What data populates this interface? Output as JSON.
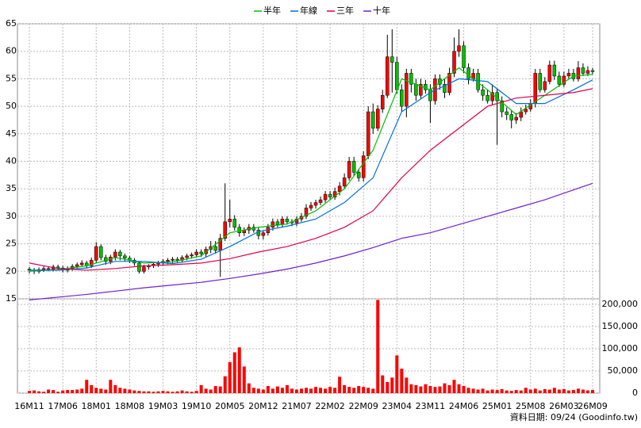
{
  "chart_data": {
    "type": "candlestick",
    "legend": "top",
    "grid": true,
    "up_color": "#ff0000",
    "down_color": "#00c000",
    "wick_color": "#000000",
    "xlim": [
      -2.5,
      119.5
    ],
    "ylim": [
      15,
      65
    ],
    "yticks": [
      15,
      20,
      25,
      30,
      35,
      40,
      45,
      50,
      55,
      60,
      65
    ],
    "y2lim": [
      0,
      212500
    ],
    "y2ticks": [
      0,
      {
        "value": 50000,
        "label": "50,000"
      },
      {
        "value": 100000,
        "label": "100,000"
      },
      {
        "value": 150000,
        "label": "150,000"
      },
      {
        "value": 200000,
        "label": "200,000"
      }
    ],
    "xticks": [
      {
        "value": 0,
        "label": "16M11"
      },
      {
        "value": 7,
        "label": "17M06"
      },
      {
        "value": 14,
        "label": "18M01"
      },
      {
        "value": 21,
        "label": "18M08"
      },
      {
        "value": 28,
        "label": "19M03"
      },
      {
        "value": 35,
        "label": "19M10"
      },
      {
        "value": 42,
        "label": "20M05"
      },
      {
        "value": 49,
        "label": "20M12"
      },
      {
        "value": 56,
        "label": "21M07"
      },
      {
        "value": 63,
        "label": "22M02"
      },
      {
        "value": 70,
        "label": "22M09"
      },
      {
        "value": 77,
        "label": "23M04"
      },
      {
        "value": 84,
        "label": "23M11"
      },
      {
        "value": 91,
        "label": "24M06"
      },
      {
        "value": 98,
        "label": "25M01"
      },
      {
        "value": 105,
        "label": "25M08"
      },
      {
        "value": 112,
        "label": "26M03"
      },
      {
        "value": 118,
        "label": "26M09"
      }
    ],
    "open": [
      20.4,
      20.2,
      20.0,
      20.3,
      20.5,
      20.4,
      20.8,
      20.6,
      20.2,
      20.5,
      20.9,
      21.2,
      21.5,
      21.0,
      22.0,
      24.5,
      22.5,
      21.8,
      22.6,
      23.5,
      22.8,
      22.4,
      22.0,
      21.5,
      20.0,
      20.8,
      21.0,
      21.3,
      21.5,
      21.8,
      22.0,
      22.2,
      22.0,
      22.5,
      22.8,
      23.0,
      23.5,
      23.2,
      24.0,
      24.5,
      23.8,
      26.0,
      29.0,
      29.5,
      28.0,
      27.0,
      27.5,
      28.0,
      27.5,
      26.5,
      27.0,
      28.0,
      29.0,
      28.5,
      29.5,
      29.0,
      28.8,
      29.5,
      30.0,
      31.5,
      32.0,
      32.5,
      33.0,
      34.0,
      33.5,
      34.5,
      35.5,
      37.0,
      40.0,
      38.0,
      37.0,
      41.0,
      49.0,
      46.0,
      49.5,
      52.0,
      59.0,
      58.0,
      53.0,
      50.0,
      56.0,
      54.0,
      52.0,
      54.0,
      53.0,
      51.0,
      55.0,
      54.0,
      52.5,
      56.0,
      60.0,
      61.0,
      57.0,
      55.0,
      56.0,
      53.0,
      52.0,
      51.0,
      52.5,
      51.0,
      49.0,
      48.5,
      47.5,
      48.0,
      49.0,
      49.5,
      50.5,
      56.0,
      53.0,
      54.5,
      57.5,
      55.5,
      54.0,
      55.5,
      56.0,
      55.0,
      57.0,
      56.0,
      56.5
    ],
    "high": [
      20.8,
      20.6,
      20.7,
      20.9,
      20.9,
      21.2,
      21.2,
      21.0,
      20.9,
      21.3,
      21.6,
      22.0,
      21.9,
      22.5,
      25.3,
      24.9,
      23.0,
      23.0,
      24.0,
      23.9,
      23.2,
      22.8,
      22.4,
      21.9,
      21.2,
      21.3,
      21.7,
      21.9,
      22.2,
      22.4,
      22.6,
      22.6,
      22.9,
      23.2,
      23.4,
      24.0,
      24.0,
      24.5,
      25.5,
      25.5,
      26.8,
      36.0,
      33.0,
      30.2,
      28.6,
      28.0,
      28.6,
      28.6,
      28.0,
      27.5,
      28.6,
      29.6,
      29.5,
      30.0,
      30.0,
      29.5,
      30.0,
      30.6,
      32.2,
      32.6,
      33.0,
      33.6,
      34.6,
      34.6,
      35.2,
      36.2,
      37.8,
      40.8,
      40.8,
      38.6,
      41.8,
      50.0,
      50.5,
      50.2,
      53.0,
      63.0,
      64.0,
      59.0,
      54.0,
      56.8,
      56.8,
      55.0,
      55.0,
      54.8,
      54.0,
      55.8,
      55.8,
      55.0,
      57.0,
      62.5,
      64.0,
      61.8,
      57.8,
      56.8,
      56.8,
      54.0,
      53.0,
      54.0,
      53.2,
      51.8,
      49.8,
      49.3,
      48.8,
      49.8,
      50.3,
      51.3,
      56.8,
      56.8,
      55.3,
      58.3,
      58.3,
      56.3,
      56.3,
      56.8,
      56.8,
      58.2,
      57.8,
      57.3,
      57.0
    ],
    "low": [
      19.6,
      19.5,
      19.6,
      19.9,
      20.0,
      20.0,
      20.2,
      19.8,
      19.8,
      20.1,
      20.5,
      20.8,
      20.5,
      20.6,
      21.5,
      22.0,
      21.2,
      21.3,
      22.0,
      22.0,
      21.8,
      21.5,
      21.0,
      19.6,
      19.6,
      20.3,
      20.6,
      20.8,
      21.0,
      21.3,
      21.5,
      21.5,
      21.6,
      22.0,
      22.3,
      22.5,
      22.6,
      22.6,
      23.3,
      23.2,
      19.0,
      25.5,
      28.0,
      27.4,
      26.3,
      26.4,
      26.8,
      27.0,
      25.8,
      25.8,
      26.5,
      27.4,
      28.0,
      28.0,
      28.5,
      28.2,
      28.2,
      29.0,
      29.5,
      31.0,
      31.4,
      32.0,
      32.5,
      33.0,
      33.0,
      33.8,
      35.0,
      36.5,
      37.4,
      36.3,
      36.3,
      40.4,
      45.0,
      45.5,
      48.8,
      51.5,
      52.5,
      52.3,
      49.0,
      48.0,
      52.5,
      51.0,
      51.3,
      52.3,
      47.0,
      50.3,
      53.0,
      51.5,
      52.0,
      55.3,
      59.0,
      56.0,
      54.0,
      54.5,
      52.5,
      51.0,
      50.5,
      50.3,
      43.0,
      48.0,
      47.5,
      46.0,
      46.8,
      47.3,
      48.5,
      49.0,
      49.8,
      52.5,
      52.5,
      54.0,
      54.8,
      53.5,
      53.5,
      55.0,
      54.5,
      54.5,
      55.5,
      55.5,
      55.8
    ],
    "close": [
      20.2,
      20.0,
      20.3,
      20.5,
      20.4,
      20.8,
      20.6,
      20.2,
      20.5,
      20.9,
      21.2,
      21.5,
      21.0,
      22.0,
      24.5,
      22.5,
      21.8,
      22.6,
      23.5,
      22.8,
      22.4,
      22.0,
      21.5,
      20.0,
      20.8,
      21.0,
      21.3,
      21.5,
      21.8,
      22.0,
      22.2,
      22.0,
      22.5,
      22.8,
      23.0,
      23.5,
      23.2,
      24.0,
      24.5,
      23.8,
      26.0,
      29.0,
      29.5,
      28.0,
      27.0,
      27.5,
      28.0,
      27.5,
      26.5,
      27.0,
      28.0,
      29.0,
      28.5,
      29.5,
      29.0,
      28.8,
      29.5,
      30.0,
      31.5,
      32.0,
      32.5,
      33.0,
      34.0,
      33.5,
      34.5,
      35.5,
      37.0,
      40.0,
      38.0,
      37.0,
      41.0,
      49.0,
      46.0,
      49.5,
      52.0,
      59.0,
      58.0,
      53.0,
      50.0,
      56.0,
      54.0,
      52.0,
      54.0,
      53.0,
      51.0,
      55.0,
      54.0,
      52.5,
      56.0,
      60.0,
      61.0,
      57.0,
      55.0,
      56.0,
      53.0,
      52.0,
      51.0,
      52.5,
      51.0,
      49.0,
      48.5,
      47.5,
      48.0,
      49.0,
      49.5,
      50.5,
      56.0,
      53.0,
      54.5,
      57.5,
      55.5,
      54.0,
      55.5,
      56.0,
      55.0,
      57.0,
      56.0,
      56.5,
      56.3
    ],
    "volume": {
      "color": "#ff0000",
      "values": [
        5000,
        6000,
        4000,
        3000,
        8000,
        7000,
        3000,
        6000,
        7000,
        7000,
        8000,
        10000,
        30000,
        18000,
        12000,
        10000,
        8000,
        30000,
        18000,
        12000,
        10000,
        8000,
        6000,
        5000,
        4000,
        4000,
        3000,
        4000,
        5000,
        4000,
        3000,
        4000,
        6000,
        4000,
        3000,
        5000,
        18000,
        10000,
        8000,
        16000,
        15000,
        38000,
        70000,
        92000,
        103000,
        60000,
        22000,
        12000,
        10000,
        8000,
        16000,
        10000,
        15000,
        12000,
        18000,
        10000,
        8000,
        10000,
        12000,
        10000,
        14000,
        12000,
        10000,
        14000,
        12000,
        37000,
        18000,
        14000,
        12000,
        16000,
        14000,
        12000,
        10000,
        210000,
        40000,
        25000,
        35000,
        85000,
        55000,
        35000,
        20000,
        18000,
        15000,
        20000,
        16000,
        14000,
        15000,
        22000,
        18000,
        30000,
        20000,
        16000,
        12000,
        10000,
        8000,
        10000,
        6000,
        8000,
        7000,
        9000,
        6000,
        5000,
        7000,
        6000,
        12000,
        8000,
        10000,
        6000,
        9000,
        8000,
        12000,
        8000,
        9000,
        6000,
        7000,
        10000,
        8000,
        6000,
        7000
      ]
    },
    "series": [
      {
        "name": "半年",
        "color": "#00c000",
        "x": [
          0,
          6,
          12,
          18,
          24,
          30,
          36,
          42,
          48,
          54,
          60,
          66,
          72,
          78,
          84,
          90,
          96,
          102,
          108,
          114,
          118
        ],
        "values": [
          20,
          20.3,
          21,
          22.5,
          21.5,
          21.7,
          22.8,
          27,
          28,
          28.6,
          31,
          35,
          42,
          55,
          53,
          57,
          53,
          48.5,
          52,
          55.5,
          55.8
        ]
      },
      {
        "name": "年線",
        "color": "#0070e0",
        "x": [
          0,
          6,
          12,
          18,
          24,
          30,
          36,
          42,
          48,
          54,
          60,
          66,
          72,
          78,
          84,
          90,
          96,
          102,
          108,
          114,
          118
        ],
        "values": [
          20.2,
          20.2,
          20.6,
          21.8,
          21.8,
          21.4,
          22.2,
          24.5,
          27.2,
          28.2,
          29.5,
          32.5,
          37,
          49,
          52.5,
          55,
          54.5,
          50.5,
          50.5,
          53,
          54.8
        ]
      },
      {
        "name": "三年",
        "color": "#e00050",
        "x": [
          0,
          6,
          12,
          18,
          24,
          30,
          36,
          42,
          48,
          54,
          60,
          66,
          72,
          78,
          84,
          90,
          96,
          102,
          108,
          114,
          118
        ],
        "values": [
          21.5,
          20.5,
          20.2,
          20.5,
          21,
          21.2,
          21.5,
          22.3,
          23.5,
          24.5,
          26,
          28,
          31,
          37,
          42,
          46,
          50,
          51.5,
          52,
          52.5,
          53.2
        ]
      },
      {
        "name": "十年",
        "color": "#7020d0",
        "x": [
          0,
          6,
          12,
          18,
          24,
          30,
          36,
          42,
          48,
          54,
          60,
          66,
          72,
          78,
          84,
          90,
          96,
          102,
          108,
          114,
          118
        ],
        "values": [
          14.8,
          15.3,
          15.8,
          16.4,
          17,
          17.5,
          18,
          18.7,
          19.5,
          20.4,
          21.5,
          22.8,
          24.3,
          26,
          27,
          28.5,
          30,
          31.5,
          33,
          34.8,
          36
        ]
      }
    ],
    "footer": "資料日期: 09/24  (Goodinfo.tw)"
  }
}
